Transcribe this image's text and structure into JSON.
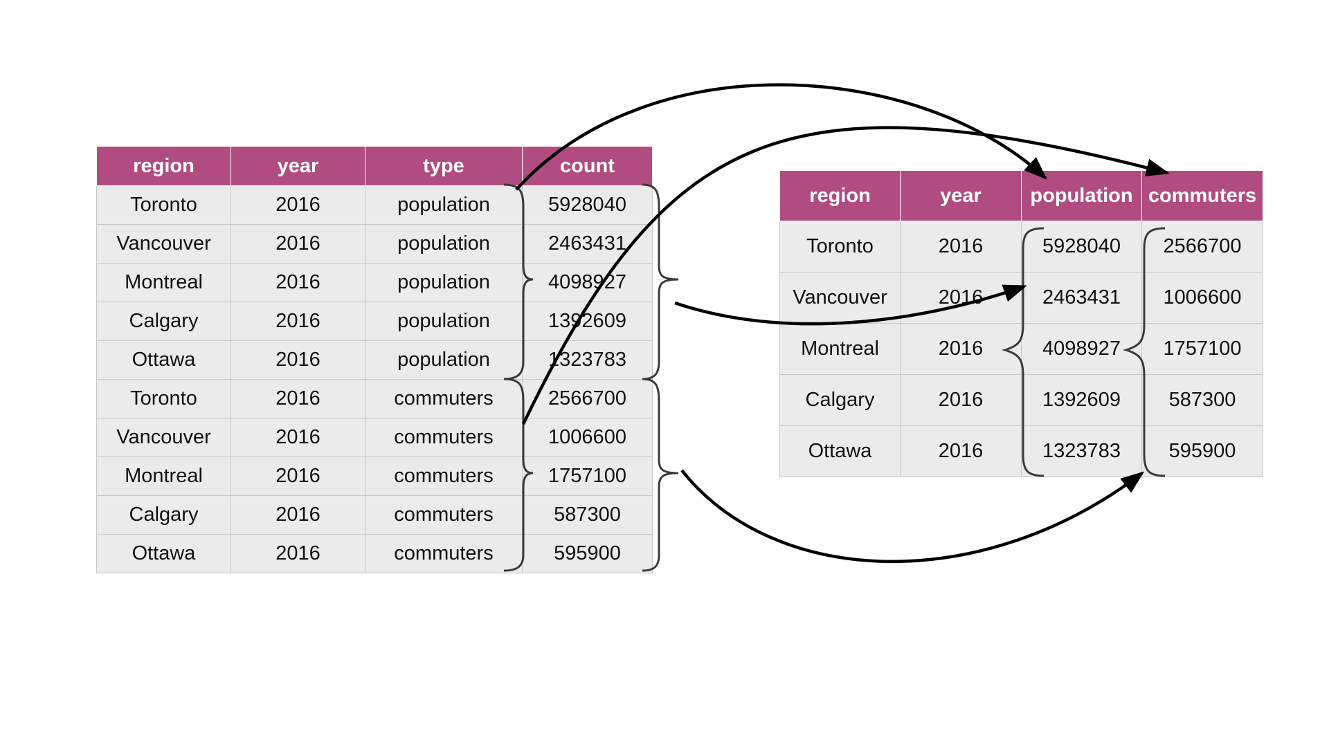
{
  "long_table": {
    "columns": [
      "region",
      "year",
      "type",
      "count"
    ],
    "rows": [
      [
        "Toronto",
        "2016",
        "population",
        "5928040"
      ],
      [
        "Vancouver",
        "2016",
        "population",
        "2463431"
      ],
      [
        "Montreal",
        "2016",
        "population",
        "4098927"
      ],
      [
        "Calgary",
        "2016",
        "population",
        "1392609"
      ],
      [
        "Ottawa",
        "2016",
        "population",
        "1323783"
      ],
      [
        "Toronto",
        "2016",
        "commuters",
        "2566700"
      ],
      [
        "Vancouver",
        "2016",
        "commuters",
        "1006600"
      ],
      [
        "Montreal",
        "2016",
        "commuters",
        "1757100"
      ],
      [
        "Calgary",
        "2016",
        "commuters",
        "587300"
      ],
      [
        "Ottawa",
        "2016",
        "commuters",
        "595900"
      ]
    ]
  },
  "wide_table": {
    "columns": [
      "region",
      "year",
      "population",
      "commuters"
    ],
    "rows": [
      [
        "Toronto",
        "2016",
        "5928040",
        "2566700"
      ],
      [
        "Vancouver",
        "2016",
        "2463431",
        "1006600"
      ],
      [
        "Montreal",
        "2016",
        "4098927",
        "1757100"
      ],
      [
        "Calgary",
        "2016",
        "1392609",
        "587300"
      ],
      [
        "Ottawa",
        "2016",
        "1323783",
        "595900"
      ]
    ]
  },
  "colors": {
    "header_bg": "#b04c80",
    "header_text": "#ffffff",
    "cell_bg": "#ebebeb",
    "cell_border": "#c6c6c6",
    "arrow": "#000000",
    "brace": "#3a3a3a"
  }
}
